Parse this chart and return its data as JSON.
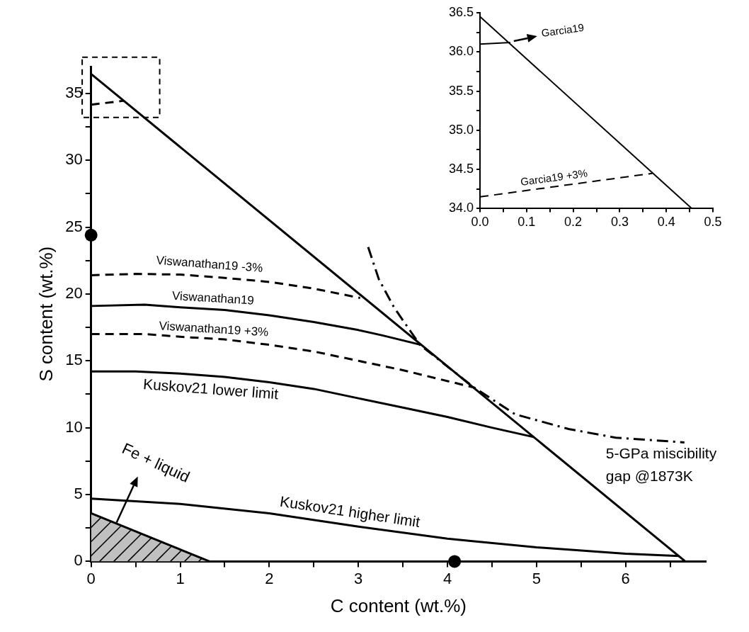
{
  "chart_data": [
    {
      "type": "line",
      "xlabel": "C content (wt.%)",
      "ylabel": "S content (wt.%)",
      "xlim": [
        0,
        6.9
      ],
      "ylim": [
        0,
        37
      ],
      "xticks": [
        0,
        {
          "value": 0.5,
          "label": null
        },
        1,
        {
          "value": 1.5,
          "label": null
        },
        2,
        {
          "value": 2.5,
          "label": null
        },
        3,
        {
          "value": 3.5,
          "label": null
        },
        4,
        {
          "value": 4.5,
          "label": null
        },
        5,
        {
          "value": 5.5,
          "label": null
        },
        6,
        {
          "value": 6.5,
          "label": null
        }
      ],
      "yticks": [
        0,
        {
          "value": 2.5,
          "label": null
        },
        5,
        {
          "value": 7.5,
          "label": null
        },
        10,
        {
          "value": 12.5,
          "label": null
        },
        15,
        {
          "value": 17.5,
          "label": null
        },
        20,
        {
          "value": 22.5,
          "label": null
        },
        25,
        {
          "value": 27.5,
          "label": null
        },
        30,
        {
          "value": 32.5,
          "label": null
        },
        35
      ],
      "marker": "none",
      "series": [
        {
          "color": "#000000",
          "line_style": "solid",
          "x": [
            0,
            6.67
          ],
          "values": [
            36.45,
            0
          ]
        },
        {
          "name": "Viswanathan19 -3%",
          "color": "#000000",
          "line_style": "dashed",
          "x": [
            0,
            0.5,
            1,
            1.5,
            2,
            2.5,
            3.02
          ],
          "values": [
            21.4,
            21.5,
            21.45,
            21.2,
            20.9,
            20.4,
            19.7
          ]
        },
        {
          "name": "Viswanathan19",
          "color": "#000000",
          "line_style": "solid",
          "x": [
            0,
            0.6,
            1,
            1.5,
            2,
            2.5,
            3,
            3.27,
            3.7
          ],
          "values": [
            19.1,
            19.2,
            19.0,
            18.8,
            18.4,
            17.9,
            17.3,
            16.9,
            16.2
          ]
        },
        {
          "name": "Viswanathan19 +3%",
          "color": "#000000",
          "line_style": "dashed",
          "x": [
            0,
            0.6,
            1,
            1.5,
            2,
            2.5,
            3,
            3.5,
            4.3
          ],
          "values": [
            17.0,
            17.0,
            16.8,
            16.6,
            16.2,
            15.7,
            15.0,
            14.3,
            13.0
          ]
        },
        {
          "name": "Kuskov21 lower limit",
          "color": "#000000",
          "line_style": "solid",
          "x": [
            0,
            0.5,
            1,
            1.5,
            2,
            2.5,
            3,
            3.5,
            4,
            4.5,
            4.97
          ],
          "values": [
            14.2,
            14.2,
            14.05,
            13.8,
            13.4,
            12.9,
            12.2,
            11.5,
            10.8,
            10.0,
            9.3
          ]
        },
        {
          "name": "Kuskov21 higher limit",
          "color": "#000000",
          "line_style": "solid",
          "x": [
            0,
            1,
            2,
            3,
            4,
            5,
            6,
            6.6
          ],
          "values": [
            4.7,
            4.3,
            3.6,
            2.6,
            1.7,
            1.05,
            0.58,
            0.4
          ]
        },
        {
          "name": "5-GPa miscibility gap @1873K",
          "color": "#000000",
          "line_style": "dashdot",
          "x": [
            3.11,
            3.23,
            3.4,
            3.69,
            4.3,
            4.76,
            5.36,
            5.89,
            6.66
          ],
          "values": [
            23.5,
            21.1,
            19.0,
            16.2,
            13.0,
            11.0,
            9.9,
            9.25,
            8.9
          ]
        },
        {
          "name": "Fe + liquid",
          "type": "area",
          "color": "#c0c0c0",
          "x": [
            0,
            1.33
          ],
          "values": [
            3.6,
            0
          ]
        },
        {
          "color": "#000000",
          "line_style": "dashed",
          "x": [
            0,
            0.37
          ],
          "values": [
            34.15,
            34.45
          ]
        },
        {
          "type": "scatter",
          "marker": "circle",
          "color": "#000000",
          "x": [
            0,
            4.08
          ],
          "values": [
            24.4,
            0
          ]
        }
      ]
    },
    {
      "type": "line",
      "xlim": [
        0,
        0.5
      ],
      "ylim": [
        34,
        36.5
      ],
      "xticks": [
        {
          "value": 0,
          "label": "0.0"
        },
        {
          "value": 0.05,
          "label": null
        },
        {
          "value": 0.1,
          "label": "0.1"
        },
        {
          "value": 0.15,
          "label": null
        },
        {
          "value": 0.2,
          "label": "0.2"
        },
        {
          "value": 0.25,
          "label": null
        },
        {
          "value": 0.3,
          "label": "0.3"
        },
        {
          "value": 0.35,
          "label": null
        },
        {
          "value": 0.4,
          "label": "0.4"
        },
        {
          "value": 0.45,
          "label": null
        },
        {
          "value": 0.5,
          "label": "0.5"
        }
      ],
      "yticks": [
        {
          "value": 34,
          "label": "34.0"
        },
        {
          "value": 34.25,
          "label": null
        },
        {
          "value": 34.5,
          "label": "34.5"
        },
        {
          "value": 34.75,
          "label": null
        },
        {
          "value": 35,
          "label": "35.0"
        },
        {
          "value": 35.25,
          "label": null
        },
        {
          "value": 35.5,
          "label": "35.5"
        },
        {
          "value": 35.75,
          "label": null
        },
        {
          "value": 36,
          "label": "36.0"
        },
        {
          "value": 36.25,
          "label": null
        },
        {
          "value": 36.5,
          "label": "36.5"
        }
      ],
      "marker": "none",
      "series": [
        {
          "color": "#000000",
          "line_style": "solid",
          "x": [
            0,
            0.455
          ],
          "values": [
            36.45,
            34.0
          ]
        },
        {
          "name": "Garcia19",
          "color": "#000000",
          "line_style": "solid",
          "x": [
            0,
            0.065
          ],
          "values": [
            36.1,
            36.12
          ]
        },
        {
          "name": "Garcia19 +3%",
          "color": "#000000",
          "line_style": "dashed",
          "x": [
            0,
            0.37
          ],
          "values": [
            34.15,
            34.45
          ]
        }
      ]
    }
  ]
}
